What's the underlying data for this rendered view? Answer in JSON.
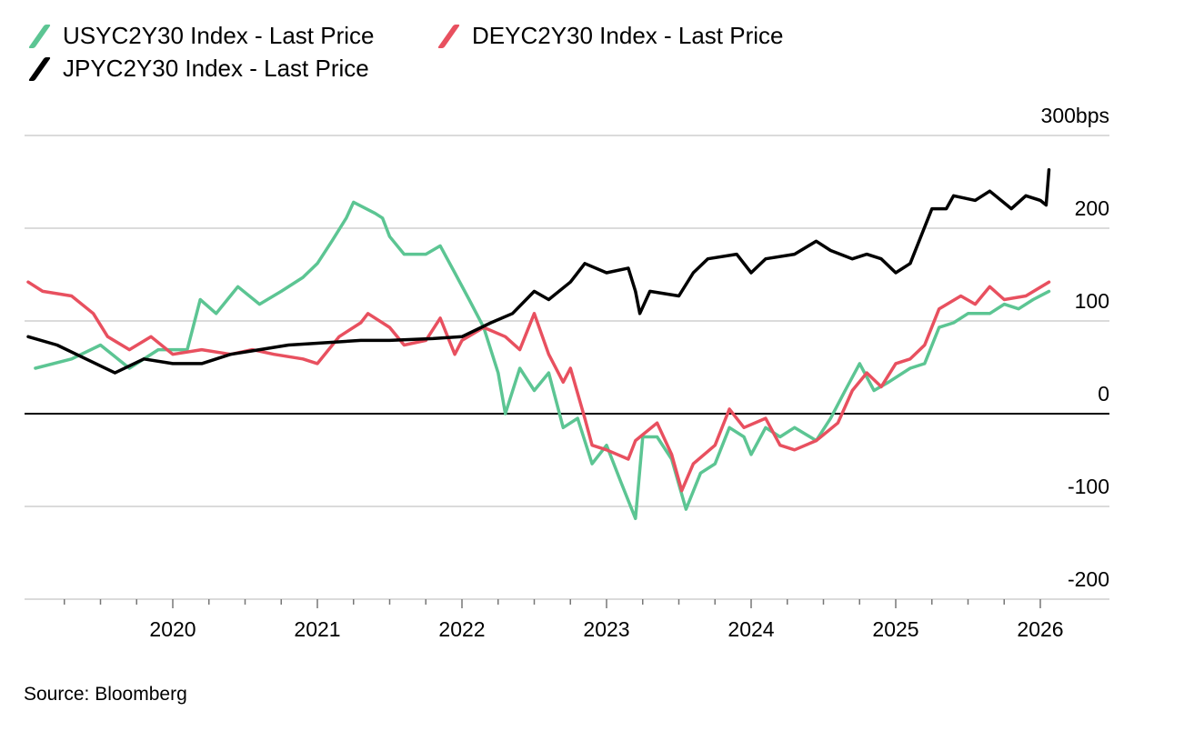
{
  "chart_data": {
    "type": "line",
    "title": "",
    "xlabel": "",
    "ylabel": "",
    "y_unit_label": "300bps",
    "ylim": [
      -200,
      300
    ],
    "yticks": [
      {
        "v": 300,
        "label": "300bps"
      },
      {
        "v": 200,
        "label": "200"
      },
      {
        "v": 100,
        "label": "100"
      },
      {
        "v": 0,
        "label": "0"
      },
      {
        "v": -100,
        "label": "-100"
      },
      {
        "v": -200,
        "label": "-200"
      }
    ],
    "xlim": [
      2019.0,
      2026.2
    ],
    "xticks": [
      "2020",
      "2021",
      "2022",
      "2023",
      "2024",
      "2025",
      "2026"
    ],
    "grid": true,
    "legend_position": "top-left",
    "series": [
      {
        "name": "USYC2Y30 Index - Last Price",
        "color": "#5cc593",
        "x": [
          2019.05,
          2019.3,
          2019.5,
          2019.7,
          2019.9,
          2020.1,
          2020.19,
          2020.3,
          2020.45,
          2020.6,
          2020.75,
          2020.9,
          2021.0,
          2021.1,
          2021.2,
          2021.25,
          2021.4,
          2021.45,
          2021.5,
          2021.6,
          2021.75,
          2021.85,
          2021.95,
          2022.05,
          2022.15,
          2022.25,
          2022.3,
          2022.4,
          2022.5,
          2022.6,
          2022.7,
          2022.8,
          2022.9,
          2023.0,
          2023.1,
          2023.2,
          2023.25,
          2023.35,
          2023.45,
          2023.55,
          2023.65,
          2023.75,
          2023.85,
          2023.95,
          2024.0,
          2024.1,
          2024.2,
          2024.3,
          2024.45,
          2024.55,
          2024.65,
          2024.75,
          2024.85,
          2024.95,
          2025.1,
          2025.2,
          2025.3,
          2025.4,
          2025.5,
          2025.65,
          2025.75,
          2025.85,
          2025.95,
          2026.06
        ],
        "y": [
          49,
          59,
          74,
          49,
          69,
          69,
          123,
          108,
          137,
          118,
          132,
          147,
          162,
          186,
          211,
          228,
          216,
          211,
          191,
          172,
          172,
          181,
          152,
          123,
          93,
          44,
          0,
          49,
          25,
          44,
          -15,
          -5,
          -54,
          -34,
          -74,
          -113,
          -25,
          -25,
          -49,
          -103,
          -64,
          -54,
          -15,
          -25,
          -44,
          -15,
          -25,
          -15,
          -29,
          -5,
          25,
          54,
          25,
          34,
          49,
          54,
          93,
          98,
          108,
          108,
          118,
          113,
          123,
          132
        ]
      },
      {
        "name": "DEYC2Y30 Index - Last Price",
        "color": "#e8505f",
        "x": [
          2019.0,
          2019.1,
          2019.3,
          2019.45,
          2019.55,
          2019.7,
          2019.85,
          2020.0,
          2020.2,
          2020.4,
          2020.55,
          2020.7,
          2020.9,
          2021.0,
          2021.15,
          2021.3,
          2021.35,
          2021.5,
          2021.6,
          2021.75,
          2021.85,
          2021.95,
          2022.0,
          2022.15,
          2022.3,
          2022.4,
          2022.5,
          2022.6,
          2022.7,
          2022.75,
          2022.85,
          2022.9,
          2023.0,
          2023.15,
          2023.2,
          2023.35,
          2023.45,
          2023.52,
          2023.6,
          2023.75,
          2023.85,
          2023.95,
          2024.1,
          2024.2,
          2024.3,
          2024.45,
          2024.6,
          2024.7,
          2024.8,
          2024.9,
          2025.0,
          2025.1,
          2025.2,
          2025.3,
          2025.45,
          2025.55,
          2025.65,
          2025.75,
          2025.9,
          2026.06
        ],
        "y": [
          142,
          132,
          127,
          108,
          83,
          69,
          83,
          64,
          69,
          64,
          69,
          64,
          59,
          54,
          83,
          98,
          108,
          93,
          74,
          79,
          103,
          64,
          79,
          93,
          83,
          69,
          108,
          64,
          34,
          49,
          -5,
          -34,
          -39,
          -49,
          -29,
          -10,
          -44,
          -83,
          -54,
          -34,
          5,
          -15,
          -5,
          -34,
          -39,
          -29,
          -10,
          25,
          44,
          29,
          54,
          59,
          74,
          113,
          127,
          118,
          137,
          123,
          127,
          142
        ]
      },
      {
        "name": "JPYC2Y30 Index - Last Price",
        "color": "#000000",
        "x": [
          2019.0,
          2019.2,
          2019.4,
          2019.6,
          2019.8,
          2020.0,
          2020.2,
          2020.4,
          2020.6,
          2020.8,
          2021.0,
          2021.3,
          2021.5,
          2021.8,
          2022.0,
          2022.2,
          2022.35,
          2022.5,
          2022.6,
          2022.75,
          2022.85,
          2023.0,
          2023.15,
          2023.2,
          2023.23,
          2023.3,
          2023.5,
          2023.6,
          2023.7,
          2023.9,
          2024.0,
          2024.1,
          2024.3,
          2024.45,
          2024.55,
          2024.7,
          2024.8,
          2024.9,
          2025.0,
          2025.1,
          2025.25,
          2025.35,
          2025.4,
          2025.55,
          2025.65,
          2025.8,
          2025.9,
          2026.0,
          2026.04,
          2026.06
        ],
        "y": [
          83,
          74,
          59,
          44,
          59,
          54,
          54,
          64,
          69,
          74,
          76,
          79,
          79,
          81,
          83,
          98,
          108,
          132,
          123,
          142,
          162,
          152,
          157,
          132,
          108,
          132,
          127,
          152,
          167,
          172,
          152,
          167,
          172,
          186,
          176,
          167,
          172,
          167,
          152,
          162,
          221,
          221,
          235,
          230,
          240,
          221,
          235,
          230,
          225,
          263
        ]
      }
    ]
  },
  "source": "Source: Bloomberg"
}
